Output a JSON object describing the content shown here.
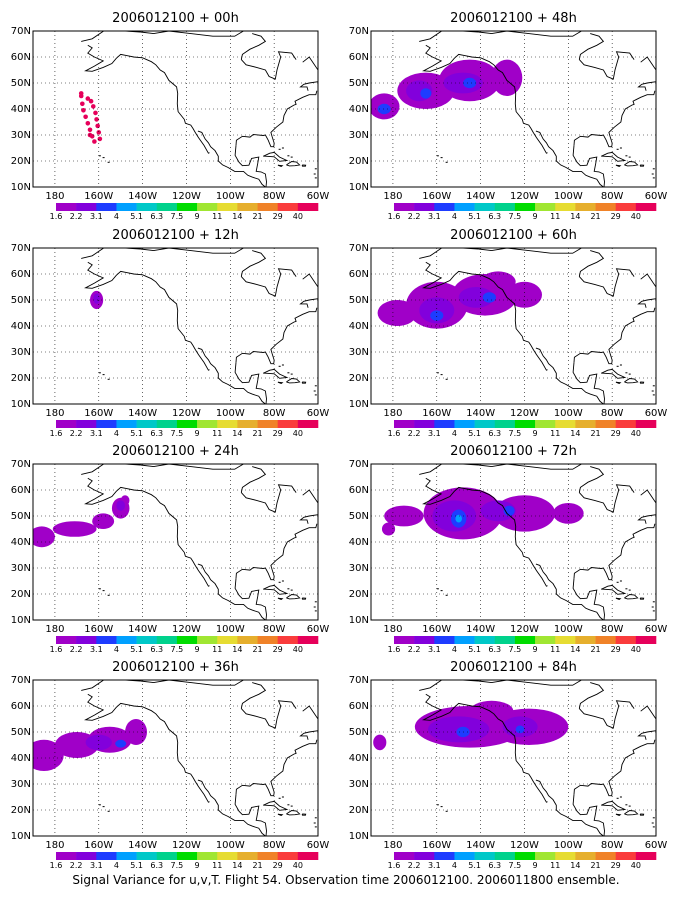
{
  "figure": {
    "caption": "Signal Variance for u,v,T. Flight 54. Observation time 2006012100. 2006011800 ensemble.",
    "colorbar_levels": [
      "1.6",
      "2.2",
      "3.1",
      "4",
      "5.1",
      "6.3",
      "7.5",
      "9",
      "11",
      "14",
      "21",
      "29",
      "40"
    ],
    "colorbar_colors": [
      "#a000c8",
      "#8200dc",
      "#1e3cff",
      "#00a0ff",
      "#00c8c8",
      "#00d28c",
      "#00dc00",
      "#a0e632",
      "#e6dc32",
      "#e6af2d",
      "#f08228",
      "#fa3c3c",
      "#e6005a"
    ],
    "lon_ticks": [
      "180",
      "160W",
      "140W",
      "120W",
      "100W",
      "80W",
      "60W"
    ],
    "lat_ticks": [
      "10N",
      "20N",
      "30N",
      "40N",
      "50N",
      "60N",
      "70N"
    ],
    "lon_range_deg": [
      -190,
      -60
    ],
    "lat_range_deg": [
      10,
      70
    ],
    "grid": "dotted",
    "panels": [
      {
        "title": "2006012100 + 00h",
        "pattern": "track"
      },
      {
        "title": "2006012100 + 48h",
        "pattern": "p48"
      },
      {
        "title": "2006012100 + 12h",
        "pattern": "p12"
      },
      {
        "title": "2006012100 + 60h",
        "pattern": "p60"
      },
      {
        "title": "2006012100 + 24h",
        "pattern": "p24"
      },
      {
        "title": "2006012100 + 72h",
        "pattern": "p72"
      },
      {
        "title": "2006012100 + 36h",
        "pattern": "p36"
      },
      {
        "title": "2006012100 + 84h",
        "pattern": "p84"
      }
    ]
  }
}
